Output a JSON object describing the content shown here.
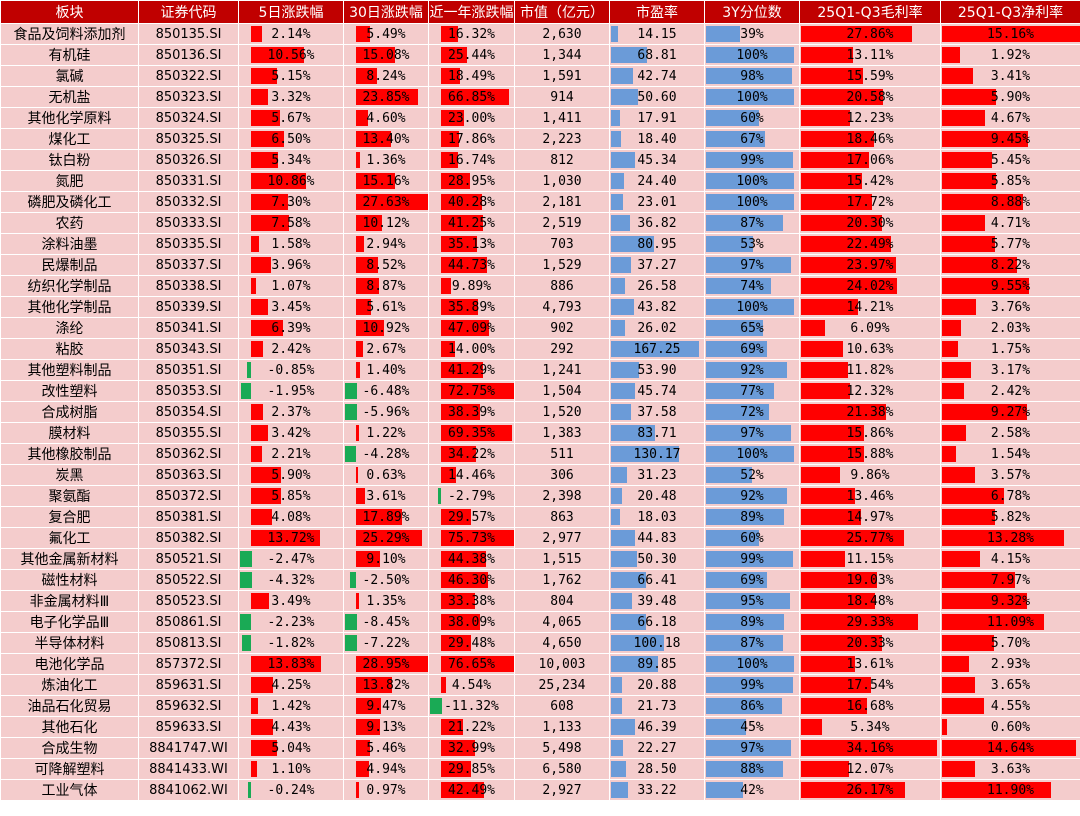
{
  "headers": [
    "板块",
    "证券代码",
    "5日涨跌幅",
    "30日涨跌幅",
    "近一年涨跌幅",
    "市值（亿元）",
    "市盈率",
    "3Y分位数",
    "25Q1-Q3毛利率",
    "25Q1-Q3净利率"
  ],
  "colors": {
    "header_bg": "#c00000",
    "row_bg": "#f4cccc",
    "positive_bar": "#ff0000",
    "negative_bar": "#1aaa55",
    "value_bar": "#6b9bd8"
  },
  "rows": [
    {
      "name": "食品及饲料添加剂",
      "code": "850135.SI",
      "d5": "2.14%",
      "d30": "5.49%",
      "y1": "16.32%",
      "mcap": "2,630",
      "pe": "14.15",
      "pct3y": "39%",
      "gm": "27.86%",
      "nm": "15.16%"
    },
    {
      "name": "有机硅",
      "code": "850136.SI",
      "d5": "10.56%",
      "d30": "15.08%",
      "y1": "25.44%",
      "mcap": "1,344",
      "pe": "68.81",
      "pct3y": "100%",
      "gm": "13.11%",
      "nm": "1.92%"
    },
    {
      "name": "氯碱",
      "code": "850322.SI",
      "d5": "5.15%",
      "d30": "8.24%",
      "y1": "18.49%",
      "mcap": "1,591",
      "pe": "42.74",
      "pct3y": "98%",
      "gm": "15.59%",
      "nm": "3.41%"
    },
    {
      "name": "无机盐",
      "code": "850323.SI",
      "d5": "3.32%",
      "d30": "23.85%",
      "y1": "66.85%",
      "mcap": "914",
      "pe": "50.60",
      "pct3y": "100%",
      "gm": "20.58%",
      "nm": "5.90%"
    },
    {
      "name": "其他化学原料",
      "code": "850324.SI",
      "d5": "5.67%",
      "d30": "4.60%",
      "y1": "23.00%",
      "mcap": "1,411",
      "pe": "17.91",
      "pct3y": "60%",
      "gm": "12.23%",
      "nm": "4.67%"
    },
    {
      "name": "煤化工",
      "code": "850325.SI",
      "d5": "6.50%",
      "d30": "13.40%",
      "y1": "17.86%",
      "mcap": "2,223",
      "pe": "18.40",
      "pct3y": "67%",
      "gm": "18.46%",
      "nm": "9.45%"
    },
    {
      "name": "钛白粉",
      "code": "850326.SI",
      "d5": "5.34%",
      "d30": "1.36%",
      "y1": "16.74%",
      "mcap": "812",
      "pe": "45.34",
      "pct3y": "99%",
      "gm": "17.06%",
      "nm": "5.45%"
    },
    {
      "name": "氮肥",
      "code": "850331.SI",
      "d5": "10.86%",
      "d30": "15.16%",
      "y1": "28.95%",
      "mcap": "1,030",
      "pe": "24.40",
      "pct3y": "100%",
      "gm": "15.42%",
      "nm": "5.85%"
    },
    {
      "name": "磷肥及磷化工",
      "code": "850332.SI",
      "d5": "7.30%",
      "d30": "27.63%",
      "y1": "40.28%",
      "mcap": "2,181",
      "pe": "23.01",
      "pct3y": "100%",
      "gm": "17.72%",
      "nm": "8.88%"
    },
    {
      "name": "农药",
      "code": "850333.SI",
      "d5": "7.58%",
      "d30": "10.12%",
      "y1": "41.25%",
      "mcap": "2,519",
      "pe": "36.82",
      "pct3y": "87%",
      "gm": "20.30%",
      "nm": "4.71%"
    },
    {
      "name": "涂料油墨",
      "code": "850335.SI",
      "d5": "1.58%",
      "d30": "2.94%",
      "y1": "35.13%",
      "mcap": "703",
      "pe": "80.95",
      "pct3y": "53%",
      "gm": "22.49%",
      "nm": "5.77%"
    },
    {
      "name": "民爆制品",
      "code": "850337.SI",
      "d5": "3.96%",
      "d30": "8.52%",
      "y1": "44.73%",
      "mcap": "1,529",
      "pe": "37.27",
      "pct3y": "97%",
      "gm": "23.97%",
      "nm": "8.22%"
    },
    {
      "name": "纺织化学制品",
      "code": "850338.SI",
      "d5": "1.07%",
      "d30": "8.87%",
      "y1": "9.89%",
      "mcap": "886",
      "pe": "26.58",
      "pct3y": "74%",
      "gm": "24.02%",
      "nm": "9.55%"
    },
    {
      "name": "其他化学制品",
      "code": "850339.SI",
      "d5": "3.45%",
      "d30": "5.61%",
      "y1": "35.89%",
      "mcap": "4,793",
      "pe": "43.82",
      "pct3y": "100%",
      "gm": "14.21%",
      "nm": "3.76%"
    },
    {
      "name": "涤纶",
      "code": "850341.SI",
      "d5": "6.39%",
      "d30": "10.92%",
      "y1": "47.09%",
      "mcap": "902",
      "pe": "26.02",
      "pct3y": "65%",
      "gm": "6.09%",
      "nm": "2.03%"
    },
    {
      "name": "粘胶",
      "code": "850343.SI",
      "d5": "2.42%",
      "d30": "2.67%",
      "y1": "14.00%",
      "mcap": "292",
      "pe": "167.25",
      "pct3y": "69%",
      "gm": "10.63%",
      "nm": "1.75%"
    },
    {
      "name": "其他塑料制品",
      "code": "850351.SI",
      "d5": "-0.85%",
      "d30": "1.40%",
      "y1": "41.29%",
      "mcap": "1,241",
      "pe": "53.90",
      "pct3y": "92%",
      "gm": "11.82%",
      "nm": "3.17%"
    },
    {
      "name": "改性塑料",
      "code": "850353.SI",
      "d5": "-1.95%",
      "d30": "-6.48%",
      "y1": "72.75%",
      "mcap": "1,504",
      "pe": "45.74",
      "pct3y": "77%",
      "gm": "12.32%",
      "nm": "2.42%"
    },
    {
      "name": "合成树脂",
      "code": "850354.SI",
      "d5": "2.37%",
      "d30": "-5.96%",
      "y1": "38.39%",
      "mcap": "1,520",
      "pe": "37.58",
      "pct3y": "72%",
      "gm": "21.38%",
      "nm": "9.27%"
    },
    {
      "name": "膜材料",
      "code": "850355.SI",
      "d5": "3.42%",
      "d30": "1.22%",
      "y1": "69.35%",
      "mcap": "1,383",
      "pe": "83.71",
      "pct3y": "97%",
      "gm": "15.86%",
      "nm": "2.58%"
    },
    {
      "name": "其他橡胶制品",
      "code": "850362.SI",
      "d5": "2.21%",
      "d30": "-4.28%",
      "y1": "34.22%",
      "mcap": "511",
      "pe": "130.17",
      "pct3y": "100%",
      "gm": "15.88%",
      "nm": "1.54%"
    },
    {
      "name": "炭黑",
      "code": "850363.SI",
      "d5": "5.90%",
      "d30": "0.63%",
      "y1": "14.46%",
      "mcap": "306",
      "pe": "31.23",
      "pct3y": "52%",
      "gm": "9.86%",
      "nm": "3.57%"
    },
    {
      "name": "聚氨酯",
      "code": "850372.SI",
      "d5": "5.85%",
      "d30": "3.61%",
      "y1": "-2.79%",
      "mcap": "2,398",
      "pe": "20.48",
      "pct3y": "92%",
      "gm": "13.46%",
      "nm": "6.78%"
    },
    {
      "name": "复合肥",
      "code": "850381.SI",
      "d5": "4.08%",
      "d30": "17.89%",
      "y1": "29.57%",
      "mcap": "863",
      "pe": "18.03",
      "pct3y": "89%",
      "gm": "14.97%",
      "nm": "5.82%"
    },
    {
      "name": "氟化工",
      "code": "850382.SI",
      "d5": "13.72%",
      "d30": "25.29%",
      "y1": "75.73%",
      "mcap": "2,977",
      "pe": "44.83",
      "pct3y": "60%",
      "gm": "25.77%",
      "nm": "13.28%"
    },
    {
      "name": "其他金属新材料",
      "code": "850521.SI",
      "d5": "-2.47%",
      "d30": "9.10%",
      "y1": "44.38%",
      "mcap": "1,515",
      "pe": "50.30",
      "pct3y": "99%",
      "gm": "11.15%",
      "nm": "4.15%"
    },
    {
      "name": "磁性材料",
      "code": "850522.SI",
      "d5": "-4.32%",
      "d30": "-2.50%",
      "y1": "46.30%",
      "mcap": "1,762",
      "pe": "66.41",
      "pct3y": "69%",
      "gm": "19.03%",
      "nm": "7.97%"
    },
    {
      "name": "非金属材料Ⅲ",
      "code": "850523.SI",
      "d5": "3.49%",
      "d30": "1.35%",
      "y1": "33.38%",
      "mcap": "804",
      "pe": "39.48",
      "pct3y": "95%",
      "gm": "18.48%",
      "nm": "9.32%"
    },
    {
      "name": "电子化学品Ⅲ",
      "code": "850861.SI",
      "d5": "-2.23%",
      "d30": "-8.45%",
      "y1": "38.09%",
      "mcap": "4,065",
      "pe": "66.18",
      "pct3y": "89%",
      "gm": "29.33%",
      "nm": "11.09%"
    },
    {
      "name": "半导体材料",
      "code": "850813.SI",
      "d5": "-1.82%",
      "d30": "-7.22%",
      "y1": "29.48%",
      "mcap": "4,650",
      "pe": "100.18",
      "pct3y": "87%",
      "gm": "20.33%",
      "nm": "5.70%"
    },
    {
      "name": "电池化学品",
      "code": "857372.SI",
      "d5": "13.83%",
      "d30": "28.95%",
      "y1": "76.65%",
      "mcap": "10,003",
      "pe": "89.85",
      "pct3y": "100%",
      "gm": "13.61%",
      "nm": "2.93%"
    },
    {
      "name": "炼油化工",
      "code": "859631.SI",
      "d5": "4.25%",
      "d30": "13.82%",
      "y1": "4.54%",
      "mcap": "25,234",
      "pe": "20.88",
      "pct3y": "99%",
      "gm": "17.54%",
      "nm": "3.65%"
    },
    {
      "name": "油品石化贸易",
      "code": "859632.SI",
      "d5": "1.42%",
      "d30": "9.47%",
      "y1": "-11.32%",
      "mcap": "608",
      "pe": "21.73",
      "pct3y": "86%",
      "gm": "16.68%",
      "nm": "4.55%"
    },
    {
      "name": "其他石化",
      "code": "859633.SI",
      "d5": "4.43%",
      "d30": "9.13%",
      "y1": "21.22%",
      "mcap": "1,133",
      "pe": "46.39",
      "pct3y": "45%",
      "gm": "5.34%",
      "nm": "0.60%"
    },
    {
      "name": "合成生物",
      "code": "8841747.WI",
      "d5": "5.04%",
      "d30": "5.46%",
      "y1": "32.99%",
      "mcap": "5,498",
      "pe": "22.27",
      "pct3y": "97%",
      "gm": "34.16%",
      "nm": "14.64%"
    },
    {
      "name": "可降解塑料",
      "code": "8841433.WI",
      "d5": "1.10%",
      "d30": "4.94%",
      "y1": "29.85%",
      "mcap": "6,580",
      "pe": "28.50",
      "pct3y": "88%",
      "gm": "12.07%",
      "nm": "3.63%"
    },
    {
      "name": "工业气体",
      "code": "8841062.WI",
      "d5": "-0.24%",
      "d30": "0.97%",
      "y1": "42.49%",
      "mcap": "2,927",
      "pe": "33.22",
      "pct3y": "42%",
      "gm": "26.17%",
      "nm": "11.90%"
    }
  ]
}
